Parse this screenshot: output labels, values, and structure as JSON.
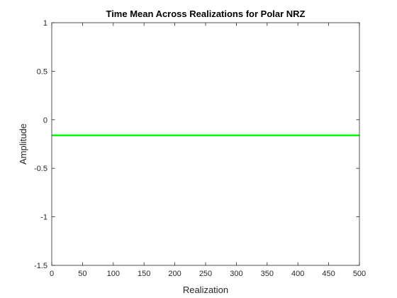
{
  "chart_data": {
    "type": "line",
    "title": "Time Mean Across Realizations for Polar NRZ",
    "xlabel": "Realization",
    "ylabel": "Amplitude",
    "xlim": [
      0,
      500
    ],
    "ylim": [
      -1.5,
      1
    ],
    "x_ticks": [
      0,
      50,
      100,
      150,
      200,
      250,
      300,
      350,
      400,
      450,
      500
    ],
    "x_tick_labels": [
      "0",
      "50",
      "100",
      "150",
      "200",
      "250",
      "300",
      "350",
      "400",
      "450",
      "500"
    ],
    "y_ticks": [
      1,
      0.5,
      0,
      -0.5,
      -1,
      -1.5
    ],
    "y_tick_labels": [
      "1",
      "0.5",
      "0",
      "-0.5",
      "-1",
      "-1.5"
    ],
    "grid": false,
    "series": [
      {
        "color": "#00ff00",
        "x": [
          0,
          500
        ],
        "y": [
          -0.16,
          -0.16
        ]
      }
    ]
  }
}
